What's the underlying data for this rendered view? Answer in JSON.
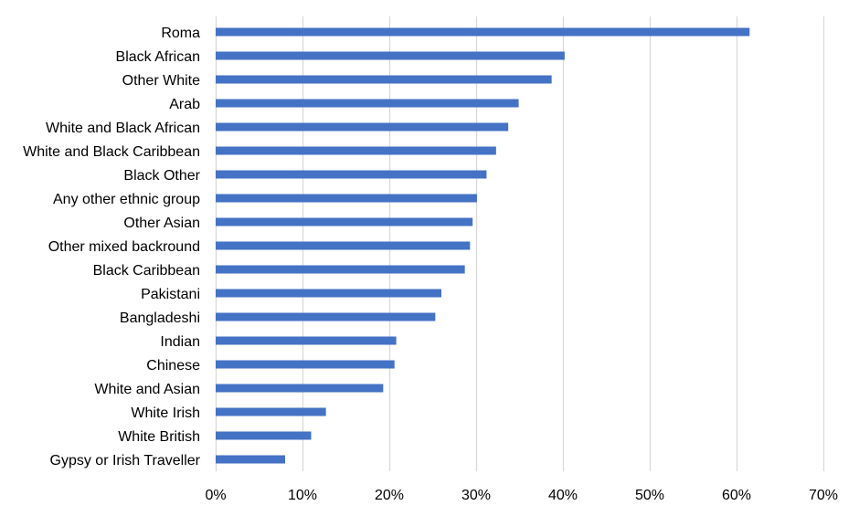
{
  "chart_data": {
    "type": "bar",
    "orientation": "horizontal",
    "categories": [
      "Roma",
      "Black African",
      "Other White",
      "Arab",
      "White and Black African",
      "White and Black Caribbean",
      "Black Other",
      "Any other ethnic group",
      "Other Asian",
      "Other mixed backround",
      "Black Caribbean",
      "Pakistani",
      "Bangladeshi",
      "Indian",
      "Chinese",
      "White and Asian",
      "White Irish",
      "White British",
      "Gypsy or Irish Traveller"
    ],
    "values": [
      61.5,
      40.2,
      38.7,
      34.9,
      33.7,
      32.3,
      31.2,
      30.1,
      29.6,
      29.3,
      28.7,
      26.0,
      25.3,
      20.8,
      20.6,
      19.3,
      12.7,
      11.0,
      8.0
    ],
    "xlim": [
      0,
      70
    ],
    "x_ticks": [
      0,
      10,
      20,
      30,
      40,
      50,
      60,
      70
    ],
    "tick_suffix": "%",
    "grid": "vertical",
    "legend": "none",
    "bar_color": "#4472c4",
    "grid_color": "#d9d9d9",
    "title": "",
    "xlabel": "",
    "ylabel": ""
  }
}
